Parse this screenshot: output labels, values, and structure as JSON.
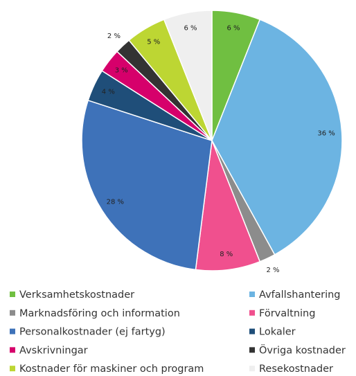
{
  "chart_data": {
    "type": "pie",
    "categories": [
      "Verksamhetskostnader",
      "Avfallshantering",
      "Marknadsföring och information",
      "Förvaltning",
      "Personalkostnader (ej fartyg)",
      "Lokaler",
      "Avskrivningar",
      "Övriga kostnader",
      "Kostnader för maskiner och program",
      "Resekostnader"
    ],
    "values": [
      6,
      36,
      2,
      8,
      28,
      4,
      3,
      2,
      5,
      6
    ],
    "value_labels": [
      "6 %",
      "36 %",
      "2 %",
      "8 %",
      "28 %",
      "4 %",
      "3 %",
      "2 %",
      "5 %",
      "6 %"
    ],
    "colors": [
      "#70bf41",
      "#6cb4e2",
      "#8c8c8c",
      "#f0508e",
      "#3e72b9",
      "#1f4e79",
      "#d6006b",
      "#333333",
      "#bdd633",
      "#efefef"
    ],
    "legend": "bottom"
  }
}
